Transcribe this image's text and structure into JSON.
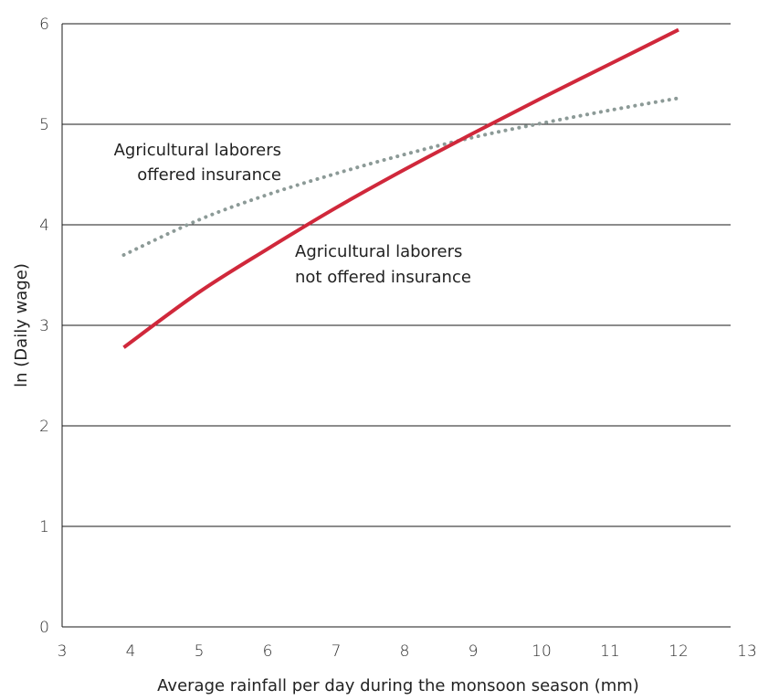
{
  "chart_data": {
    "type": "line",
    "title": "",
    "xlabel": "Average rainfall per day during the monsoon season (mm)",
    "ylabel": "ln (Daily wage)",
    "xlim": [
      3,
      13
    ],
    "ylim": [
      0,
      6
    ],
    "x_ticks": [
      "3",
      "4",
      "5",
      "6",
      "7",
      "8",
      "9",
      "10",
      "11",
      "12",
      "13"
    ],
    "y_ticks": [
      "0",
      "1",
      "2",
      "3",
      "4",
      "5",
      "6"
    ],
    "grid": "horizontal",
    "series": [
      {
        "name": "Agricultural laborers offered insurance",
        "style": "dotted",
        "color": "#8c9a97",
        "x": [
          3.9,
          5,
          6,
          7,
          8,
          9,
          10,
          11,
          12
        ],
        "y": [
          3.7,
          4.05,
          4.3,
          4.51,
          4.7,
          4.87,
          5.01,
          5.14,
          5.26
        ]
      },
      {
        "name": "Agricultural laborers not offered insurance",
        "style": "solid",
        "color": "#d0283b",
        "x": [
          3.9,
          5,
          6,
          7,
          8,
          9,
          10,
          11,
          12
        ],
        "y": [
          2.78,
          3.33,
          3.76,
          4.17,
          4.55,
          4.91,
          5.26,
          5.6,
          5.94
        ]
      }
    ],
    "annotations": [
      {
        "lines": [
          "Agricultural laborers",
          "offered insurance"
        ]
      },
      {
        "lines": [
          "Agricultural laborers",
          "not offered insurance"
        ]
      }
    ]
  }
}
